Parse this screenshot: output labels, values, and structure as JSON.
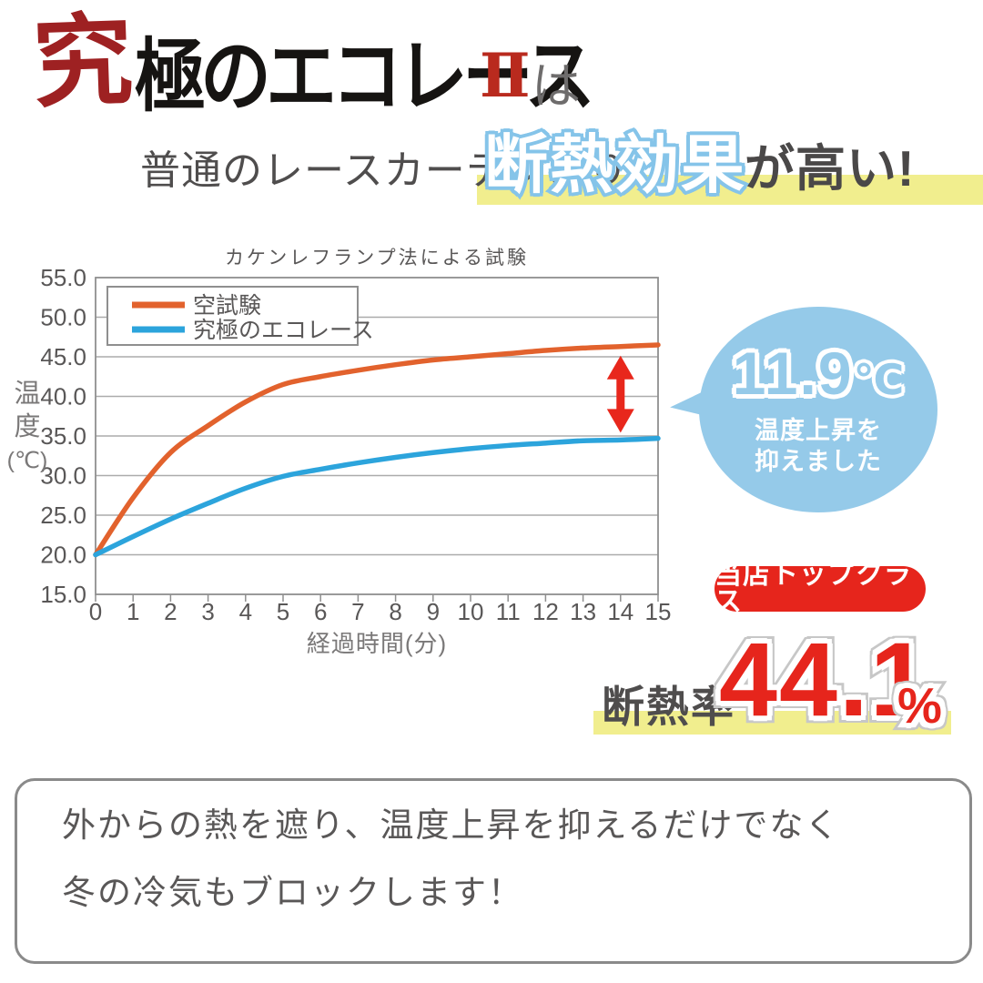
{
  "logo": {
    "accent_char": "究",
    "main": "極のエコレース",
    "numeral": "Ⅱ",
    "particle": "は"
  },
  "headline": {
    "prefix": "普通のレースカーテンより",
    "highlight": "断熱効果",
    "suffix": "が高い!"
  },
  "chart_data": {
    "type": "line",
    "title": "カケンレフランプ法による試験",
    "xlabel": "経過時間(分)",
    "ylabel": "温度(℃)",
    "x": [
      0,
      1,
      2,
      3,
      4,
      5,
      6,
      7,
      8,
      9,
      10,
      11,
      12,
      13,
      14,
      15
    ],
    "series": [
      {
        "name": "空試験",
        "color": "#e2622d",
        "values": [
          20.0,
          27.2,
          32.9,
          36.3,
          39.3,
          41.5,
          42.5,
          43.3,
          44.0,
          44.6,
          45.0,
          45.4,
          45.8,
          46.1,
          46.3,
          46.5
        ]
      },
      {
        "name": "究極のエコレース",
        "color": "#2ca4dc",
        "values": [
          20.0,
          22.3,
          24.5,
          26.5,
          28.4,
          29.9,
          30.8,
          31.6,
          32.3,
          32.9,
          33.4,
          33.8,
          34.1,
          34.4,
          34.5,
          34.7
        ]
      }
    ],
    "ylim": [
      15,
      55
    ],
    "ytick_step": 5,
    "grid": true,
    "legend_position": "top-left",
    "annotation": {
      "type": "double-arrow",
      "x": 14,
      "color": "#e8271c",
      "meaning": "temperature difference 11.9℃"
    }
  },
  "callout": {
    "value": "11.9",
    "unit": "℃",
    "line1": "温度上昇を",
    "line2": "抑えました"
  },
  "badge": {
    "label": "当店トップクラス"
  },
  "stats": {
    "label": "断熱率",
    "value": "44.1",
    "unit": "%"
  },
  "footer": {
    "line1": "外からの熱を遮り、温度上昇を抑えるだけでなく",
    "line2": "冬の冷気もブロックします！"
  },
  "colors": {
    "logo_red": "#9e2122",
    "numeral_red": "#b92a1e",
    "highlight_yellow": "#f1ee8e",
    "highlight_blue_outline": "#85c4e9",
    "series_blank_test": "#e2622d",
    "series_eco_lace": "#2ca4dc",
    "bubble_blue": "#95cae9",
    "accent_red": "#e6251c",
    "text_gray": "#595757"
  }
}
